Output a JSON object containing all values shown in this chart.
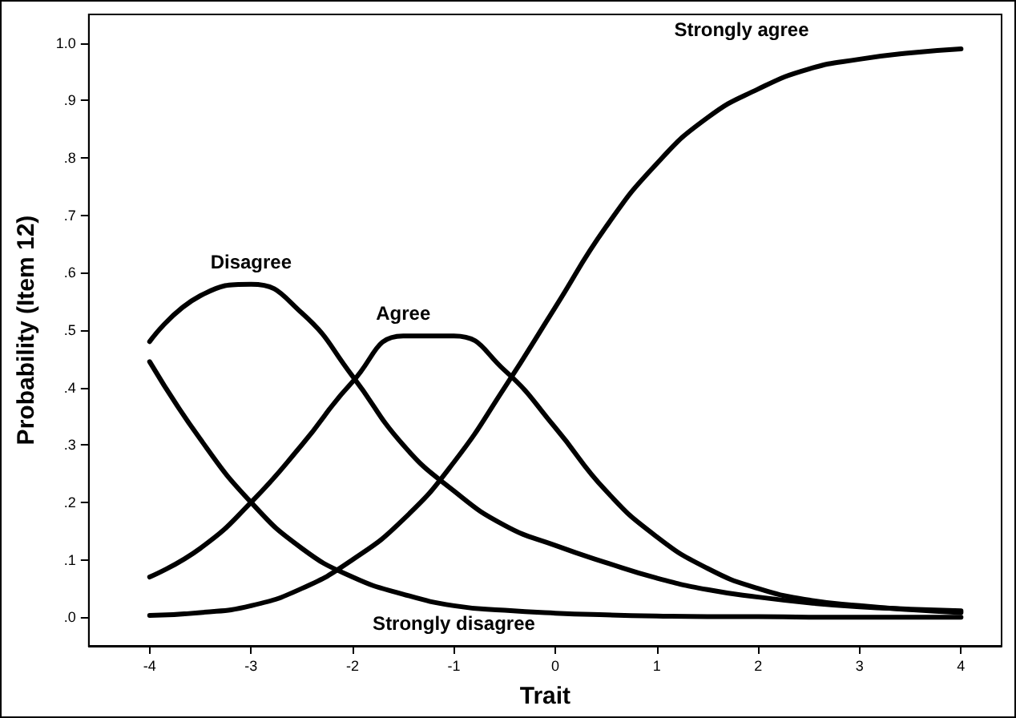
{
  "chart_data": {
    "type": "line",
    "xlabel": "Trait",
    "ylabel": "Probability (Item 12)",
    "x": [
      -4,
      -3.5,
      -3,
      -2.5,
      -2,
      -1.5,
      -1,
      -0.5,
      0,
      0.5,
      1,
      1.5,
      2,
      2.5,
      3,
      3.5,
      4
    ],
    "series": [
      {
        "name": "Strongly disagree",
        "color": "#000000",
        "values": [
          0.445,
          0.31,
          0.2,
          0.12,
          0.07,
          0.04,
          0.02,
          0.012,
          0.007,
          0.004,
          0.002,
          0.001,
          0.001,
          0,
          0,
          0,
          0
        ]
      },
      {
        "name": "Disagree",
        "color": "#000000",
        "values": [
          0.48,
          0.56,
          0.58,
          0.53,
          0.42,
          0.3,
          0.22,
          0.16,
          0.125,
          0.095,
          0.068,
          0.048,
          0.035,
          0.025,
          0.018,
          0.014,
          0.011
        ]
      },
      {
        "name": "Agree",
        "color": "#000000",
        "values": [
          0.07,
          0.12,
          0.2,
          0.3,
          0.41,
          0.49,
          0.49,
          0.43,
          0.33,
          0.22,
          0.14,
          0.085,
          0.05,
          0.03,
          0.02,
          0.013,
          0.008
        ]
      },
      {
        "name": "Strongly agree",
        "color": "#000000",
        "values": [
          0.003,
          0.008,
          0.02,
          0.05,
          0.1,
          0.17,
          0.27,
          0.4,
          0.54,
          0.68,
          0.79,
          0.87,
          0.92,
          0.955,
          0.972,
          0.983,
          0.99
        ]
      }
    ],
    "xlim": [
      -4.6,
      4.4
    ],
    "xticks": [
      -4,
      -3,
      -2,
      -1,
      0,
      1,
      2,
      3,
      4
    ],
    "ylim": [
      -0.05,
      1.05
    ],
    "yticks": [
      {
        "value": 0,
        "label": ".0"
      },
      {
        "value": 0.1,
        "label": ".1"
      },
      {
        "value": 0.2,
        "label": ".2"
      },
      {
        "value": 0.3,
        "label": ".3"
      },
      {
        "value": 0.4,
        "label": ".4"
      },
      {
        "value": 0.5,
        "label": ".5"
      },
      {
        "value": 0.6,
        "label": ".6"
      },
      {
        "value": 0.7,
        "label": ".7"
      },
      {
        "value": 0.8,
        "label": ".8"
      },
      {
        "value": 0.9,
        "label": ".9"
      },
      {
        "value": 1,
        "label": "1.0"
      }
    ],
    "grid": false,
    "marker": "none",
    "line_style": "solid"
  }
}
